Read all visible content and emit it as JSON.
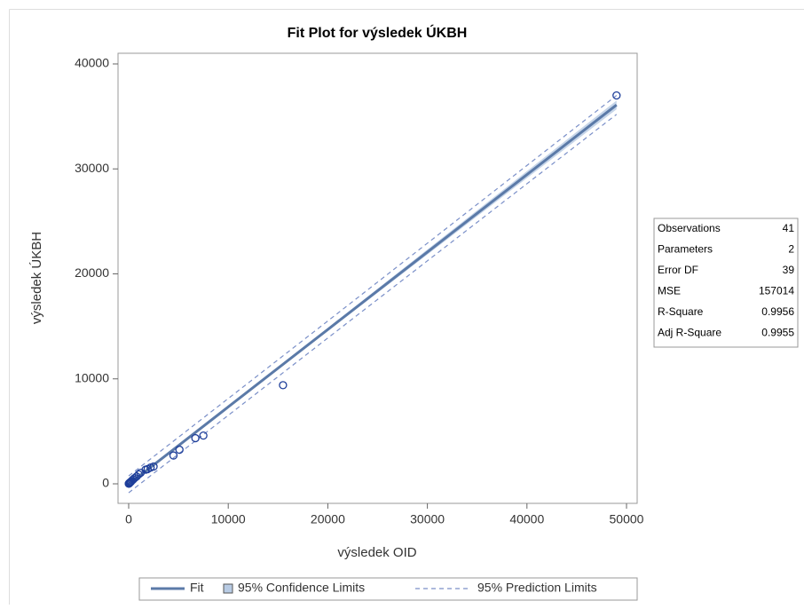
{
  "chart_data": {
    "type": "fitplot",
    "title": "Fit Plot for výsledek ÚKBH",
    "x_label": "výsledek OID",
    "y_label": "výsledek ÚKBH",
    "xlim": [
      -1070,
      51070
    ],
    "ylim": [
      -1860,
      41015
    ],
    "xticks": [
      0,
      10000,
      20000,
      30000,
      40000,
      50000
    ],
    "yticks": [
      0,
      10000,
      20000,
      30000,
      40000
    ],
    "points": {
      "x": [
        49000,
        15500,
        7500,
        6700,
        5100,
        4500,
        2500,
        2200,
        1900,
        1700,
        1200,
        1000,
        800,
        600,
        450,
        350,
        250,
        200,
        150,
        100,
        80,
        50,
        30,
        20,
        10
      ],
      "y": [
        37000,
        9400,
        4600,
        4350,
        3250,
        2700,
        1650,
        1550,
        1400,
        1350,
        1050,
        900,
        700,
        550,
        420,
        330,
        230,
        180,
        140,
        100,
        70,
        50,
        30,
        20,
        10
      ],
      "color": "#1f3f9a"
    },
    "fit": {
      "x": [
        0,
        10000,
        20000,
        30000,
        40000,
        49000
      ],
      "y": [
        -50,
        7327,
        14704,
        22081,
        29458,
        36097
      ],
      "ci_lower": [
        -130,
        7237,
        14554,
        21841,
        29128,
        35677
      ],
      "ci_upper": [
        30,
        7417,
        14854,
        22321,
        29788,
        36517
      ],
      "pi_lower": [
        -850,
        6527,
        13894,
        21241,
        28588,
        35197
      ],
      "pi_upper": [
        750,
        8127,
        15514,
        22921,
        30328,
        36997
      ],
      "color": "#5b7aa8",
      "band_color": "#b8cbe4",
      "pred_color": "#7a8fc8"
    },
    "stats": [
      {
        "label": "Observations",
        "value": 41
      },
      {
        "label": "Parameters",
        "value": 2
      },
      {
        "label": "Error DF",
        "value": 39
      },
      {
        "label": "MSE",
        "value": 157014
      },
      {
        "label": "R-Square",
        "value": 0.9956
      },
      {
        "label": "Adj R-Square",
        "value": 0.9955
      }
    ],
    "legend": [
      "Fit",
      "95% Confidence Limits",
      "95% Prediction Limits"
    ]
  }
}
